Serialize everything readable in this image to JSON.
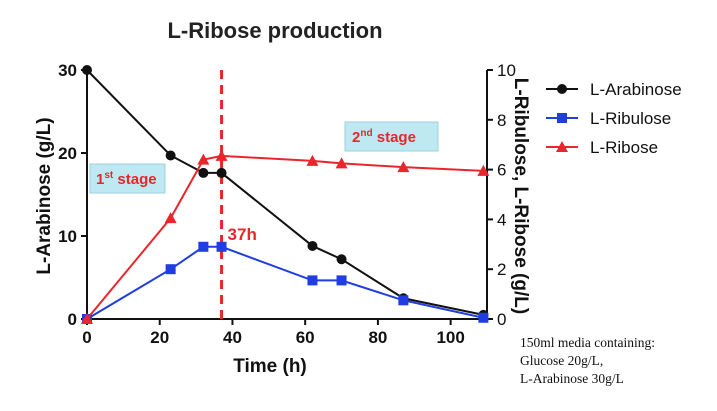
{
  "chart_data": {
    "type": "line",
    "title": "L-Ribose production",
    "xlabel": "Time (h)",
    "ylabel_left": "L-Arabinose (g/L)",
    "ylabel_right": "L-Ribulose, L-Ribose (g/L)",
    "xlim": [
      0,
      110
    ],
    "ylim_left": [
      0,
      30
    ],
    "ylim_right": [
      0,
      10
    ],
    "x_ticks": [
      0,
      20,
      40,
      60,
      80,
      100
    ],
    "y_ticks_left": [
      0,
      10,
      20,
      30
    ],
    "y_ticks_right": [
      0,
      2,
      4,
      6,
      8,
      10
    ],
    "grid": false,
    "legend_position": "right",
    "series": [
      {
        "name": "L-Arabinose",
        "axis": "left",
        "marker": "circle",
        "color": "#111111",
        "x": [
          0,
          23,
          32,
          37,
          62,
          70,
          87,
          109
        ],
        "y": [
          30,
          19.7,
          17.6,
          17.6,
          8.8,
          7.2,
          2.5,
          0.5
        ]
      },
      {
        "name": "L-Ribulose",
        "axis": "right",
        "marker": "square",
        "color": "#1f3de0",
        "x": [
          0,
          23,
          32,
          37,
          62,
          70,
          87,
          109
        ],
        "y": [
          0,
          2.0,
          2.9,
          2.9,
          1.55,
          1.55,
          0.75,
          0.05
        ]
      },
      {
        "name": "L-Ribose",
        "axis": "right",
        "marker": "triangle",
        "color": "#e8262b",
        "x": [
          0,
          23,
          32,
          37,
          62,
          70,
          87,
          109
        ],
        "y": [
          0,
          4.05,
          6.4,
          6.55,
          6.35,
          6.25,
          6.1,
          5.95
        ]
      }
    ],
    "annotations": {
      "vline_x": 37,
      "vline_label": "37h",
      "vline_color": "#e8262b",
      "stage1": {
        "main": "1",
        "sup": "st",
        "rest": " stage"
      },
      "stage2": {
        "main": "2",
        "sup": "nd",
        "rest": " stage"
      },
      "stage_box_color": "#bfe9f2"
    }
  },
  "note": {
    "line1": "150ml media containing:",
    "line2": "Glucose 20g/L,",
    "line3": "L-Arabinose 30g/L"
  }
}
